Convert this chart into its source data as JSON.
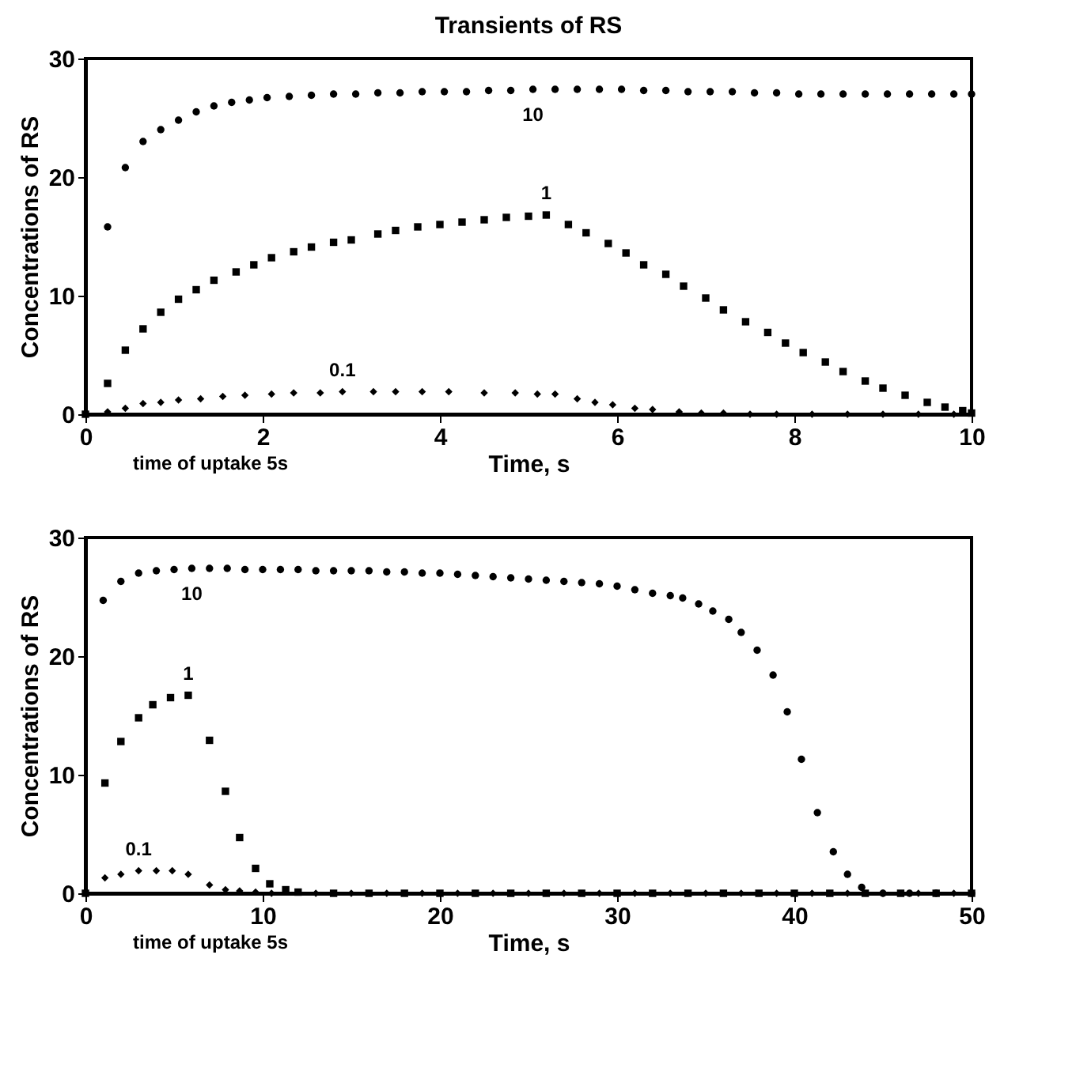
{
  "chart_data": [
    {
      "type": "scatter",
      "title": "Transients of RS",
      "xlabel": "Time, s",
      "ylabel": "Concentrations of RS",
      "annotations": [
        "time of uptake 5s"
      ],
      "xlim": [
        0,
        10
      ],
      "xticks": [
        0,
        2,
        4,
        6,
        8,
        10
      ],
      "ylim": [
        0,
        30
      ],
      "yticks": [
        0,
        10,
        20,
        30
      ],
      "grid": false,
      "series": [
        {
          "name": "10",
          "color": "#000000",
          "marker": "circle",
          "x": [
            0.25,
            0.45,
            0.65,
            0.85,
            1.05,
            1.25,
            1.45,
            1.65,
            1.85,
            2.05,
            2.3,
            2.55,
            2.8,
            3.05,
            3.3,
            3.55,
            3.8,
            4.05,
            4.3,
            4.55,
            4.8,
            5.05,
            5.3,
            5.55,
            5.8,
            6.05,
            6.3,
            6.55,
            6.8,
            7.05,
            7.3,
            7.55,
            7.8,
            8.05,
            8.3,
            8.55,
            8.8,
            9.05,
            9.3,
            9.55,
            9.8,
            10
          ],
          "values": [
            15.8,
            20.8,
            23,
            24,
            24.8,
            25.5,
            26,
            26.3,
            26.5,
            26.7,
            26.8,
            26.9,
            27,
            27,
            27.1,
            27.1,
            27.2,
            27.2,
            27.2,
            27.3,
            27.3,
            27.4,
            27.4,
            27.4,
            27.4,
            27.4,
            27.3,
            27.3,
            27.2,
            27.2,
            27.2,
            27.1,
            27.1,
            27,
            27,
            27,
            27,
            27,
            27,
            27,
            27,
            27
          ]
        },
        {
          "name": "1",
          "color": "#000000",
          "marker": "square",
          "x": [
            0,
            0.25,
            0.45,
            0.65,
            0.85,
            1.05,
            1.25,
            1.45,
            1.7,
            1.9,
            2.1,
            2.35,
            2.55,
            2.8,
            3.0,
            3.3,
            3.5,
            3.75,
            4.0,
            4.25,
            4.5,
            4.75,
            5.0,
            5.2,
            5.45,
            5.65,
            5.9,
            6.1,
            6.3,
            6.55,
            6.75,
            7.0,
            7.2,
            7.45,
            7.7,
            7.9,
            8.1,
            8.35,
            8.55,
            8.8,
            9.0,
            9.25,
            9.5,
            9.7,
            9.9,
            10
          ],
          "values": [
            0,
            2.6,
            5.4,
            7.2,
            8.6,
            9.7,
            10.5,
            11.3,
            12,
            12.6,
            13.2,
            13.7,
            14.1,
            14.5,
            14.7,
            15.2,
            15.5,
            15.8,
            16,
            16.2,
            16.4,
            16.6,
            16.7,
            16.8,
            16,
            15.3,
            14.4,
            13.6,
            12.6,
            11.8,
            10.8,
            9.8,
            8.8,
            7.8,
            6.9,
            6,
            5.2,
            4.4,
            3.6,
            2.8,
            2.2,
            1.6,
            1,
            0.6,
            0.3,
            0.1
          ]
        },
        {
          "name": "0.1",
          "color": "#000000",
          "marker": "diamond",
          "x": [
            0.25,
            0.45,
            0.65,
            0.85,
            1.05,
            1.3,
            1.55,
            1.8,
            2.1,
            2.35,
            2.65,
            2.9,
            3.25,
            3.5,
            3.8,
            4.1,
            4.5,
            4.85,
            5.1,
            5.3,
            5.55,
            5.75,
            5.95,
            6.2,
            6.4,
            6.7,
            6.95,
            7.2,
            7.5,
            7.8,
            8.2,
            8.6,
            9.0,
            9.4,
            9.8
          ],
          "values": [
            0.2,
            0.5,
            0.9,
            1,
            1.2,
            1.3,
            1.5,
            1.6,
            1.7,
            1.8,
            1.8,
            1.9,
            1.9,
            1.9,
            1.9,
            1.9,
            1.8,
            1.8,
            1.7,
            1.7,
            1.3,
            1,
            0.8,
            0.5,
            0.4,
            0.2,
            0.1,
            0.1,
            0,
            0,
            0,
            0,
            0,
            0,
            0
          ]
        }
      ]
    },
    {
      "type": "scatter",
      "xlabel": "Time, s",
      "ylabel": "Concentrations of RS",
      "annotations": [
        "time of uptake 5s"
      ],
      "xlim": [
        0,
        50
      ],
      "xticks": [
        0,
        10,
        20,
        30,
        40,
        50
      ],
      "ylim": [
        0,
        30
      ],
      "yticks": [
        0,
        10,
        20,
        30
      ],
      "grid": false,
      "series": [
        {
          "name": "10",
          "color": "#000000",
          "marker": "circle",
          "x": [
            1,
            2,
            3,
            4,
            5,
            6,
            7,
            8,
            9,
            10,
            11,
            12,
            13,
            14,
            15,
            16,
            17,
            18,
            19,
            20,
            21,
            22,
            23,
            24,
            25,
            26,
            27,
            28,
            29,
            30,
            31,
            32,
            33,
            33.7,
            34.6,
            35.4,
            36.3,
            37.0,
            37.9,
            38.8,
            39.6,
            40.4,
            41.3,
            42.2,
            43.0,
            43.8,
            45,
            46.5,
            48,
            50
          ],
          "values": [
            24.7,
            26.3,
            27,
            27.2,
            27.3,
            27.4,
            27.4,
            27.4,
            27.3,
            27.3,
            27.3,
            27.3,
            27.2,
            27.2,
            27.2,
            27.2,
            27.1,
            27.1,
            27.0,
            27.0,
            26.9,
            26.8,
            26.7,
            26.6,
            26.5,
            26.4,
            26.3,
            26.2,
            26.1,
            25.9,
            25.6,
            25.3,
            25.1,
            24.9,
            24.4,
            23.8,
            23.1,
            22.0,
            20.5,
            18.4,
            15.3,
            11.3,
            6.8,
            3.5,
            1.6,
            0.5,
            0,
            0,
            0,
            0
          ]
        },
        {
          "name": "1",
          "color": "#000000",
          "marker": "square",
          "x": [
            0,
            1.1,
            2.0,
            3.0,
            3.8,
            4.8,
            5.8,
            7.0,
            7.9,
            8.7,
            9.6,
            10.4,
            11.3,
            12,
            14,
            16,
            18,
            20,
            22,
            24,
            26,
            28,
            30,
            32,
            34,
            36,
            38,
            40,
            42,
            44,
            46,
            48,
            50
          ],
          "values": [
            0,
            9.3,
            12.8,
            14.8,
            15.9,
            16.5,
            16.7,
            12.9,
            8.6,
            4.7,
            2.1,
            0.8,
            0.3,
            0.1,
            0,
            0,
            0,
            0,
            0,
            0,
            0,
            0,
            0,
            0,
            0,
            0,
            0,
            0,
            0,
            0,
            0,
            0,
            0
          ]
        },
        {
          "name": "0.1",
          "color": "#000000",
          "marker": "diamond",
          "x": [
            1.1,
            2.0,
            3.0,
            4.0,
            4.9,
            5.8,
            7.0,
            7.9,
            8.7,
            9.6,
            10.5,
            13,
            15,
            17,
            19,
            21,
            23,
            25,
            27,
            29,
            31,
            33,
            35,
            37,
            39,
            41,
            43,
            45,
            47,
            49
          ],
          "values": [
            1.3,
            1.6,
            1.9,
            1.9,
            1.9,
            1.6,
            0.7,
            0.3,
            0.2,
            0.1,
            0,
            0,
            0,
            0,
            0,
            0,
            0,
            0,
            0,
            0,
            0,
            0,
            0,
            0,
            0,
            0,
            0,
            0,
            0,
            0
          ]
        }
      ]
    }
  ]
}
